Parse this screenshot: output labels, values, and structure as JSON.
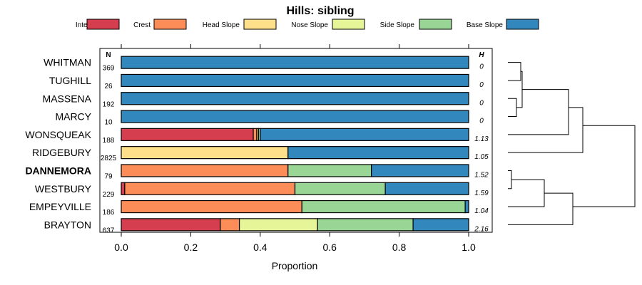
{
  "chart_data": {
    "type": "bar",
    "orientation": "horizontal",
    "stacked": true,
    "title": "Hills: sibling",
    "xlabel": "Proportion",
    "xlim": [
      0,
      1
    ],
    "xticks": [
      "0.0",
      "0.2",
      "0.4",
      "0.6",
      "0.8",
      "1.0"
    ],
    "n_header": "N",
    "h_header": "H",
    "legend_position": "top",
    "series": [
      {
        "name": "Interfluve",
        "color": "#D53E4F"
      },
      {
        "name": "Crest",
        "color": "#FC8D59"
      },
      {
        "name": "Head Slope",
        "color": "#FEE08B"
      },
      {
        "name": "Nose Slope",
        "color": "#E6F598"
      },
      {
        "name": "Side Slope",
        "color": "#99D594"
      },
      {
        "name": "Base Slope",
        "color": "#3288BD"
      }
    ],
    "rows": [
      {
        "label": "WHITMAN",
        "n": "369",
        "h": "0",
        "bold": false,
        "values": [
          0,
          0,
          0,
          0,
          0,
          1.0
        ]
      },
      {
        "label": "TUGHILL",
        "n": "26",
        "h": "0",
        "bold": false,
        "values": [
          0,
          0,
          0,
          0,
          0,
          1.0
        ]
      },
      {
        "label": "MASSENA",
        "n": "192",
        "h": "0",
        "bold": false,
        "values": [
          0,
          0,
          0,
          0,
          0,
          1.0
        ]
      },
      {
        "label": "MARCY",
        "n": "10",
        "h": "0",
        "bold": false,
        "values": [
          0,
          0,
          0,
          0,
          0,
          1.0
        ]
      },
      {
        "label": "WONSQUEAK",
        "n": "188",
        "h": "1.13",
        "bold": false,
        "values": [
          0.38,
          0.01,
          0.005,
          0,
          0.005,
          0.6
        ]
      },
      {
        "label": "RIDGEBURY",
        "n": "2825",
        "h": "1.05",
        "bold": false,
        "values": [
          0,
          0,
          0.48,
          0,
          0,
          0.52
        ]
      },
      {
        "label": "DANNEMORA",
        "n": "79",
        "h": "1.52",
        "bold": true,
        "values": [
          0,
          0.48,
          0,
          0,
          0.24,
          0.28
        ]
      },
      {
        "label": "WESTBURY",
        "n": "229",
        "h": "1.59",
        "bold": false,
        "values": [
          0.01,
          0.49,
          0,
          0,
          0.26,
          0.24
        ]
      },
      {
        "label": "EMPEYVILLE",
        "n": "186",
        "h": "1.04",
        "bold": false,
        "values": [
          0,
          0.52,
          0,
          0,
          0.47,
          0.01
        ]
      },
      {
        "label": "BRAYTON",
        "n": "637",
        "h": "2.16",
        "bold": false,
        "values": [
          0.285,
          0.055,
          0,
          0.225,
          0.275,
          0.16
        ]
      }
    ]
  }
}
